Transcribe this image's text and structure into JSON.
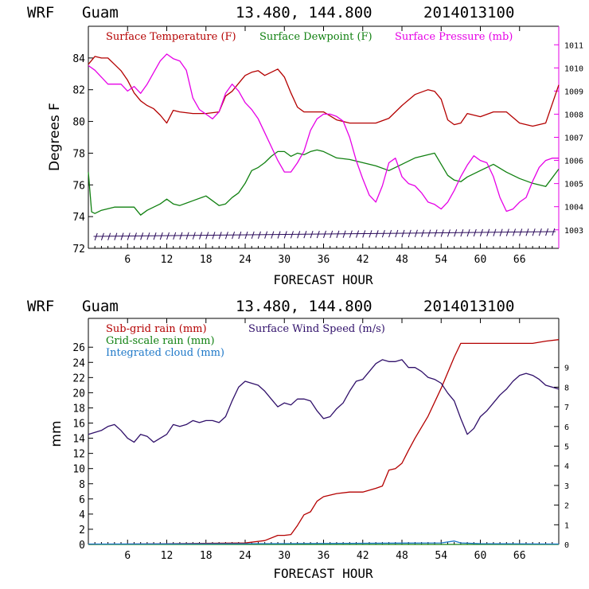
{
  "chart_data": [
    {
      "type": "line",
      "header": {
        "model": "WRF",
        "location": "Guam",
        "coords": "13.480, 144.800",
        "init": "2014013100"
      },
      "xlabel": "FORECAST HOUR",
      "ylabel": "Degrees F",
      "xlim": [
        0,
        72
      ],
      "xticks": [
        "6",
        "12",
        "18",
        "24",
        "30",
        "36",
        "42",
        "48",
        "54",
        "60",
        "66"
      ],
      "ylim": [
        72,
        86
      ],
      "yticks": [
        "72",
        "74",
        "76",
        "78",
        "80",
        "82",
        "84"
      ],
      "y2lim": [
        1002.2,
        1011.8
      ],
      "y2ticks": [
        "1003",
        "1004",
        "1005",
        "1006",
        "1007",
        "1008",
        "1009",
        "1010",
        "1011"
      ],
      "series": [
        {
          "name": "Surface Temperature (F)",
          "color": "#b40000",
          "axis": "left",
          "x": [
            0,
            1,
            2,
            3,
            4,
            5,
            6,
            7,
            8,
            9,
            10,
            11,
            12,
            13,
            14,
            16,
            18,
            20,
            21,
            22,
            23,
            24,
            25,
            26,
            27,
            28,
            29,
            30,
            31,
            32,
            33,
            34,
            36,
            38,
            40,
            42,
            44,
            46,
            48,
            50,
            52,
            53,
            54,
            55,
            56,
            57,
            58,
            60,
            62,
            64,
            66,
            68,
            70,
            72
          ],
          "values": [
            83.6,
            84.1,
            84.0,
            84.0,
            83.6,
            83.2,
            82.6,
            81.8,
            81.3,
            81.0,
            80.8,
            80.4,
            79.9,
            80.7,
            80.6,
            80.5,
            80.5,
            80.6,
            81.6,
            81.9,
            82.4,
            82.9,
            83.1,
            83.2,
            82.9,
            83.1,
            83.3,
            82.8,
            81.8,
            80.9,
            80.6,
            80.6,
            80.6,
            80.1,
            79.9,
            79.9,
            79.9,
            80.2,
            81.0,
            81.7,
            82.0,
            81.9,
            81.4,
            80.1,
            79.8,
            79.9,
            80.5,
            80.3,
            80.6,
            80.6,
            79.9,
            79.7,
            79.9,
            82.3
          ]
        },
        {
          "name": "Surface Dewpoint (F)",
          "color": "#108010",
          "axis": "left",
          "x": [
            0,
            0.5,
            1,
            2,
            3,
            4,
            5,
            6,
            7,
            8,
            9,
            10,
            11,
            12,
            13,
            14,
            16,
            18,
            19,
            20,
            21,
            22,
            23,
            24,
            25,
            26,
            27,
            28,
            29,
            30,
            31,
            32,
            33,
            34,
            35,
            36,
            38,
            40,
            42,
            44,
            46,
            48,
            50,
            52,
            53,
            54,
            55,
            56,
            57,
            58,
            60,
            62,
            64,
            66,
            68,
            70,
            72
          ],
          "values": [
            76.8,
            74.3,
            74.2,
            74.4,
            74.5,
            74.6,
            74.6,
            74.6,
            74.6,
            74.1,
            74.4,
            74.6,
            74.8,
            75.1,
            74.8,
            74.7,
            75.0,
            75.3,
            75.0,
            74.7,
            74.8,
            75.2,
            75.5,
            76.1,
            76.9,
            77.1,
            77.4,
            77.8,
            78.1,
            78.1,
            77.8,
            78.0,
            77.9,
            78.1,
            78.2,
            78.1,
            77.7,
            77.6,
            77.4,
            77.2,
            76.9,
            77.3,
            77.7,
            77.9,
            78.0,
            77.3,
            76.6,
            76.3,
            76.2,
            76.5,
            76.9,
            77.3,
            76.8,
            76.4,
            76.1,
            75.9,
            77.0
          ]
        },
        {
          "name": "Surface Pressure (mb)",
          "color": "#e600e6",
          "axis": "right",
          "x": [
            0,
            1,
            2,
            3,
            4,
            5,
            6,
            7,
            8,
            9,
            10,
            11,
            12,
            13,
            14,
            15,
            16,
            17,
            18,
            19,
            20,
            21,
            22,
            23,
            24,
            25,
            26,
            27,
            28,
            29,
            30,
            31,
            32,
            33,
            34,
            35,
            36,
            37,
            38,
            39,
            40,
            41,
            42,
            43,
            44,
            45,
            46,
            47,
            48,
            49,
            50,
            51,
            52,
            53,
            54,
            55,
            56,
            57,
            58,
            59,
            60,
            61,
            62,
            63,
            64,
            65,
            66,
            67,
            68,
            69,
            70,
            71,
            72
          ],
          "values": [
            1010.1,
            1009.9,
            1009.6,
            1009.3,
            1009.3,
            1009.3,
            1009.0,
            1009.2,
            1008.9,
            1009.3,
            1009.8,
            1010.3,
            1010.6,
            1010.4,
            1010.3,
            1009.9,
            1008.7,
            1008.2,
            1008.0,
            1007.8,
            1008.1,
            1008.9,
            1009.3,
            1009.0,
            1008.5,
            1008.2,
            1007.8,
            1007.2,
            1006.6,
            1006.0,
            1005.5,
            1005.5,
            1005.9,
            1006.4,
            1007.3,
            1007.8,
            1008.0,
            1008.0,
            1007.9,
            1007.7,
            1007.0,
            1006.0,
            1005.2,
            1004.5,
            1004.2,
            1004.9,
            1005.9,
            1006.1,
            1005.3,
            1005.0,
            1004.9,
            1004.6,
            1004.2,
            1004.1,
            1003.9,
            1004.2,
            1004.7,
            1005.3,
            1005.8,
            1006.2,
            1006.0,
            1005.9,
            1005.3,
            1004.4,
            1003.8,
            1003.9,
            1004.2,
            1004.4,
            1005.1,
            1005.7,
            1006.0,
            1006.1,
            1006.1
          ]
        }
      ],
      "wind_barbs": true
    },
    {
      "type": "line",
      "header": {
        "model": "WRF",
        "location": "Guam",
        "coords": "13.480, 144.800",
        "init": "2014013100"
      },
      "xlabel": "FORECAST HOUR",
      "ylabel": "mm",
      "xlim": [
        0,
        72
      ],
      "xticks": [
        "6",
        "12",
        "18",
        "24",
        "30",
        "36",
        "42",
        "48",
        "54",
        "60",
        "66"
      ],
      "ylim": [
        0,
        29.8
      ],
      "yticks": [
        "0",
        "2",
        "4",
        "6",
        "8",
        "10",
        "12",
        "14",
        "16",
        "18",
        "20",
        "22",
        "24",
        "26"
      ],
      "y2lim": [
        0,
        11.5
      ],
      "y2ticks": [
        "0",
        "1",
        "2",
        "3",
        "4",
        "5",
        "6",
        "7",
        "8",
        "9"
      ],
      "series": [
        {
          "name": "Sub-grid rain (mm)",
          "color": "#b40000",
          "axis": "left",
          "x": [
            0,
            24,
            27,
            29,
            30,
            31,
            32,
            33,
            34,
            35,
            36,
            38,
            40,
            42,
            44,
            45,
            46,
            47,
            48,
            49,
            50,
            52,
            54,
            56,
            57,
            60,
            66,
            68,
            70,
            72
          ],
          "values": [
            0,
            0.2,
            0.5,
            1.2,
            1.2,
            1.3,
            2.5,
            3.9,
            4.3,
            5.7,
            6.3,
            6.7,
            6.9,
            6.9,
            7.4,
            7.7,
            9.8,
            10.0,
            10.7,
            12.4,
            14.0,
            16.9,
            20.6,
            24.7,
            26.5,
            26.5,
            26.5,
            26.5,
            26.8,
            27.0
          ]
        },
        {
          "name": "Grid-scale rain (mm)",
          "color": "#108010",
          "axis": "left",
          "x": [
            0,
            72
          ],
          "values": [
            0,
            0
          ]
        },
        {
          "name": "Integrated cloud (mm)",
          "color": "#1e78c8",
          "axis": "left",
          "x": [
            0,
            30,
            40,
            54,
            56,
            57,
            60,
            72
          ],
          "values": [
            0.05,
            0.1,
            0.15,
            0.2,
            0.45,
            0.2,
            0.1,
            0.05
          ]
        },
        {
          "name": "Surface Wind Speed (m/s)",
          "color": "#30106a",
          "axis": "right",
          "x": [
            0,
            1,
            2,
            3,
            4,
            5,
            6,
            7,
            8,
            9,
            10,
            11,
            12,
            13,
            14,
            15,
            16,
            17,
            18,
            19,
            20,
            21,
            22,
            23,
            24,
            25,
            26,
            27,
            28,
            29,
            30,
            31,
            32,
            33,
            34,
            35,
            36,
            37,
            38,
            39,
            40,
            41,
            42,
            43,
            44,
            45,
            46,
            47,
            48,
            49,
            50,
            51,
            52,
            53,
            54,
            55,
            56,
            57,
            58,
            59,
            60,
            61,
            62,
            63,
            64,
            65,
            66,
            67,
            68,
            69,
            70,
            71,
            72
          ],
          "values": [
            5.6,
            5.7,
            5.8,
            6.0,
            6.1,
            5.8,
            5.4,
            5.2,
            5.6,
            5.5,
            5.2,
            5.4,
            5.6,
            6.1,
            6.0,
            6.1,
            6.3,
            6.2,
            6.3,
            6.3,
            6.2,
            6.5,
            7.3,
            8.0,
            8.3,
            8.2,
            8.1,
            7.8,
            7.4,
            7.0,
            7.2,
            7.1,
            7.4,
            7.4,
            7.3,
            6.8,
            6.4,
            6.5,
            6.9,
            7.2,
            7.8,
            8.3,
            8.4,
            8.8,
            9.2,
            9.4,
            9.3,
            9.3,
            9.4,
            9.0,
            9.0,
            8.8,
            8.5,
            8.4,
            8.2,
            7.7,
            7.3,
            6.4,
            5.6,
            5.9,
            6.5,
            6.8,
            7.2,
            7.6,
            7.9,
            8.3,
            8.6,
            8.7,
            8.6,
            8.4,
            8.1,
            8.0,
            7.9
          ]
        }
      ]
    }
  ]
}
